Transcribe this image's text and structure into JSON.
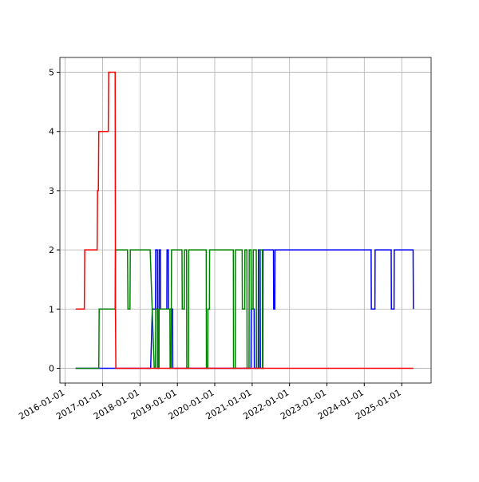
{
  "chart_data": {
    "type": "line",
    "xlim": [
      "2015-11-10",
      "2025-10-15"
    ],
    "xticks": [
      "2016-01-01",
      "2017-01-01",
      "2018-01-01",
      "2019-01-01",
      "2020-01-01",
      "2021-01-01",
      "2022-01-01",
      "2023-01-01",
      "2024-01-01",
      "2025-01-01"
    ],
    "ylim": [
      -0.25,
      5.25
    ],
    "yticks": [
      0,
      1,
      2,
      3,
      4,
      5
    ],
    "grid": true,
    "series": [
      {
        "color": "#0000ff",
        "x": [
          "2016-04-12",
          "2018-04-15",
          "2018-05-01",
          "2018-06-01",
          "2018-06-03",
          "2018-06-20",
          "2018-06-22",
          "2018-07-05",
          "2018-07-07",
          "2018-07-20",
          "2018-07-22",
          "2018-09-20",
          "2018-09-22",
          "2018-10-05",
          "2018-10-07",
          "2018-11-15",
          "2018-11-17",
          "2020-12-20",
          "2020-12-22",
          "2021-01-20",
          "2021-01-22",
          "2021-03-01",
          "2021-03-03",
          "2021-03-20",
          "2021-03-22",
          "2021-04-15",
          "2021-04-17",
          "2021-07-28",
          "2021-07-30",
          "2021-08-10",
          "2021-08-12",
          "2024-03-08",
          "2024-03-10",
          "2024-04-14",
          "2024-04-16",
          "2024-06-16",
          "2024-06-18",
          "2024-06-20",
          "2024-06-22",
          "2024-09-20",
          "2024-09-22",
          "2024-10-18",
          "2024-10-20",
          "2025-04-22",
          "2025-04-25"
        ],
        "values": [
          0,
          0,
          1,
          1,
          2,
          2,
          0,
          0,
          2,
          2,
          1,
          1,
          2,
          2,
          1,
          1,
          0,
          0,
          1,
          1,
          0,
          0,
          2,
          2,
          0,
          0,
          2,
          2,
          1,
          1,
          2,
          2,
          1,
          1,
          2,
          2,
          2,
          2,
          2,
          2,
          1,
          1,
          2,
          2,
          1
        ]
      },
      {
        "color": "#008000",
        "x": [
          "2016-04-12",
          "2016-11-24",
          "2016-11-28",
          "2017-05-03",
          "2017-05-06",
          "2017-09-01",
          "2017-09-05",
          "2017-09-25",
          "2017-09-28",
          "2018-04-10",
          "2018-05-20",
          "2018-06-01",
          "2018-06-03",
          "2018-06-20",
          "2018-06-22",
          "2018-07-01",
          "2018-07-03",
          "2018-10-20",
          "2018-10-22",
          "2018-11-01",
          "2018-11-05",
          "2019-02-15",
          "2019-02-18",
          "2019-03-10",
          "2019-03-12",
          "2019-04-01",
          "2019-04-03",
          "2019-04-20",
          "2019-04-22",
          "2019-10-10",
          "2019-10-12",
          "2019-10-25",
          "2019-10-27",
          "2019-11-10",
          "2019-11-12",
          "2020-07-01",
          "2020-07-03",
          "2020-07-20",
          "2020-07-22",
          "2020-09-25",
          "2020-09-27",
          "2020-10-20",
          "2020-10-22",
          "2020-11-10",
          "2020-11-12",
          "2020-12-01",
          "2020-12-03",
          "2020-12-20",
          "2020-12-22",
          "2021-01-10",
          "2021-01-12",
          "2021-02-10",
          "2021-02-12",
          "2021-03-15",
          "2021-03-17",
          "2021-04-10",
          "2021-04-12",
          "2021-05-01"
        ],
        "values": [
          0,
          0,
          1,
          1,
          2,
          2,
          1,
          1,
          2,
          2,
          0,
          0,
          1,
          1,
          0,
          0,
          1,
          1,
          0,
          0,
          2,
          2,
          1,
          1,
          2,
          2,
          0,
          0,
          2,
          2,
          0,
          0,
          1,
          1,
          2,
          2,
          0,
          0,
          2,
          2,
          1,
          1,
          2,
          2,
          0,
          0,
          2,
          2,
          1,
          1,
          2,
          2,
          0,
          0,
          2,
          2,
          0,
          0
        ]
      },
      {
        "color": "#ff0000",
        "x": [
          "2016-04-12",
          "2016-07-06",
          "2016-07-10",
          "2016-11-08",
          "2016-11-12",
          "2016-11-20",
          "2016-11-24",
          "2017-02-25",
          "2017-03-01",
          "2017-05-03",
          "2017-05-06",
          "2017-05-10",
          "2025-04-25"
        ],
        "values": [
          1,
          1,
          2,
          2,
          3,
          3,
          4,
          4,
          5,
          5,
          1,
          0,
          0
        ]
      }
    ]
  }
}
